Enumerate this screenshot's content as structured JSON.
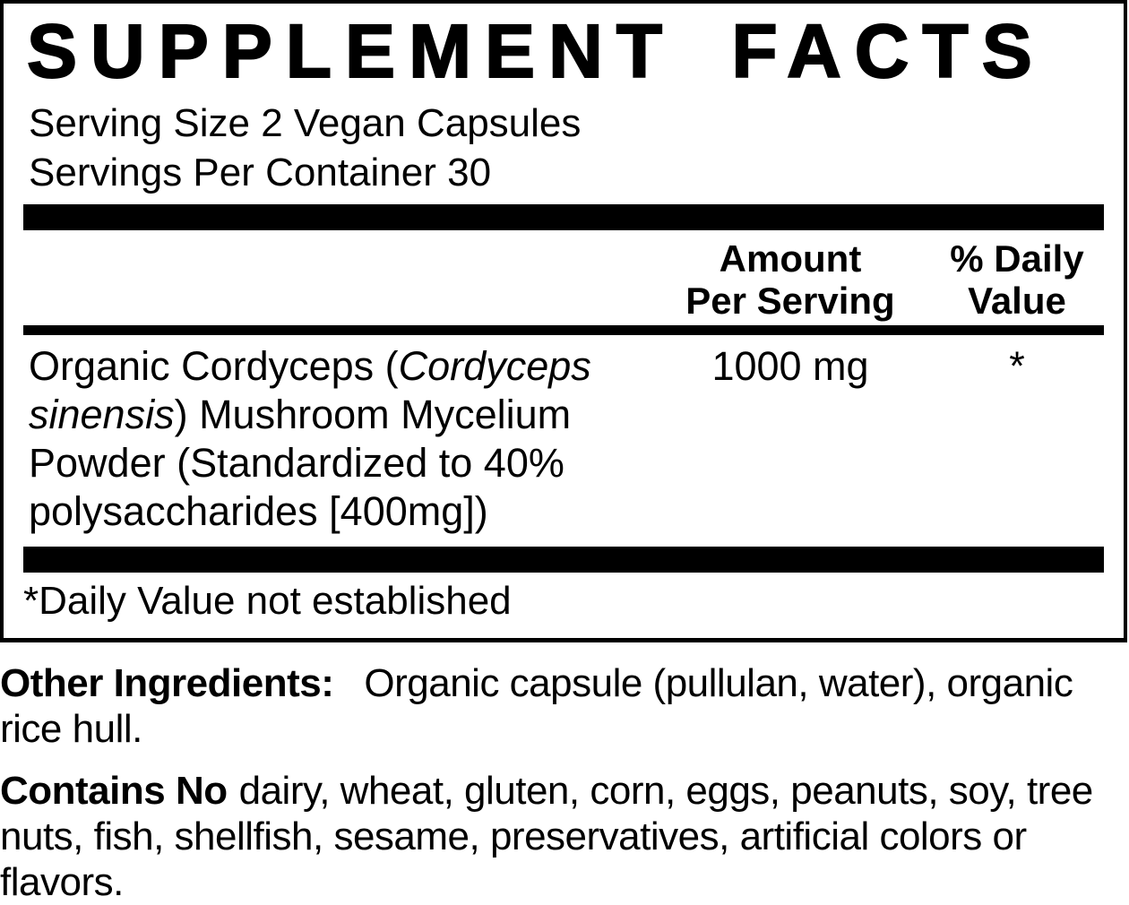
{
  "label": {
    "title": "SUPPLEMENT FACTS",
    "serving_size": "Serving Size 2 Vegan Capsules",
    "servings_per_container": "Servings Per Container 30",
    "columns": {
      "amount_header_line1": "Amount",
      "amount_header_line2": "Per Serving",
      "daily_value_header_line1": "% Daily",
      "daily_value_header_line2": "Value"
    },
    "ingredients": [
      {
        "name_parts": [
          {
            "text": "Organic Cordyceps (",
            "italic": false
          },
          {
            "text": "Cordyceps sinensis",
            "italic": true
          },
          {
            "text": ") Mushroom Mycelium Powder (Standardized to 40% polysaccharides [400mg])",
            "italic": false
          }
        ],
        "amount": "1000 mg",
        "daily_value": "*"
      }
    ],
    "footnote": "*Daily Value not established"
  },
  "other_ingredients": {
    "lead": "Other Ingredients:",
    "text": "Organic capsule (pullulan, water), organic rice hull."
  },
  "contains": {
    "lead": "Contains No",
    "text": "dairy, wheat, gluten, corn, eggs, peanuts, soy, tree nuts, fish, shellfish, sesame, preservatives, artificial colors or flavors."
  },
  "colors": {
    "text": "#000000",
    "background": "#ffffff"
  }
}
